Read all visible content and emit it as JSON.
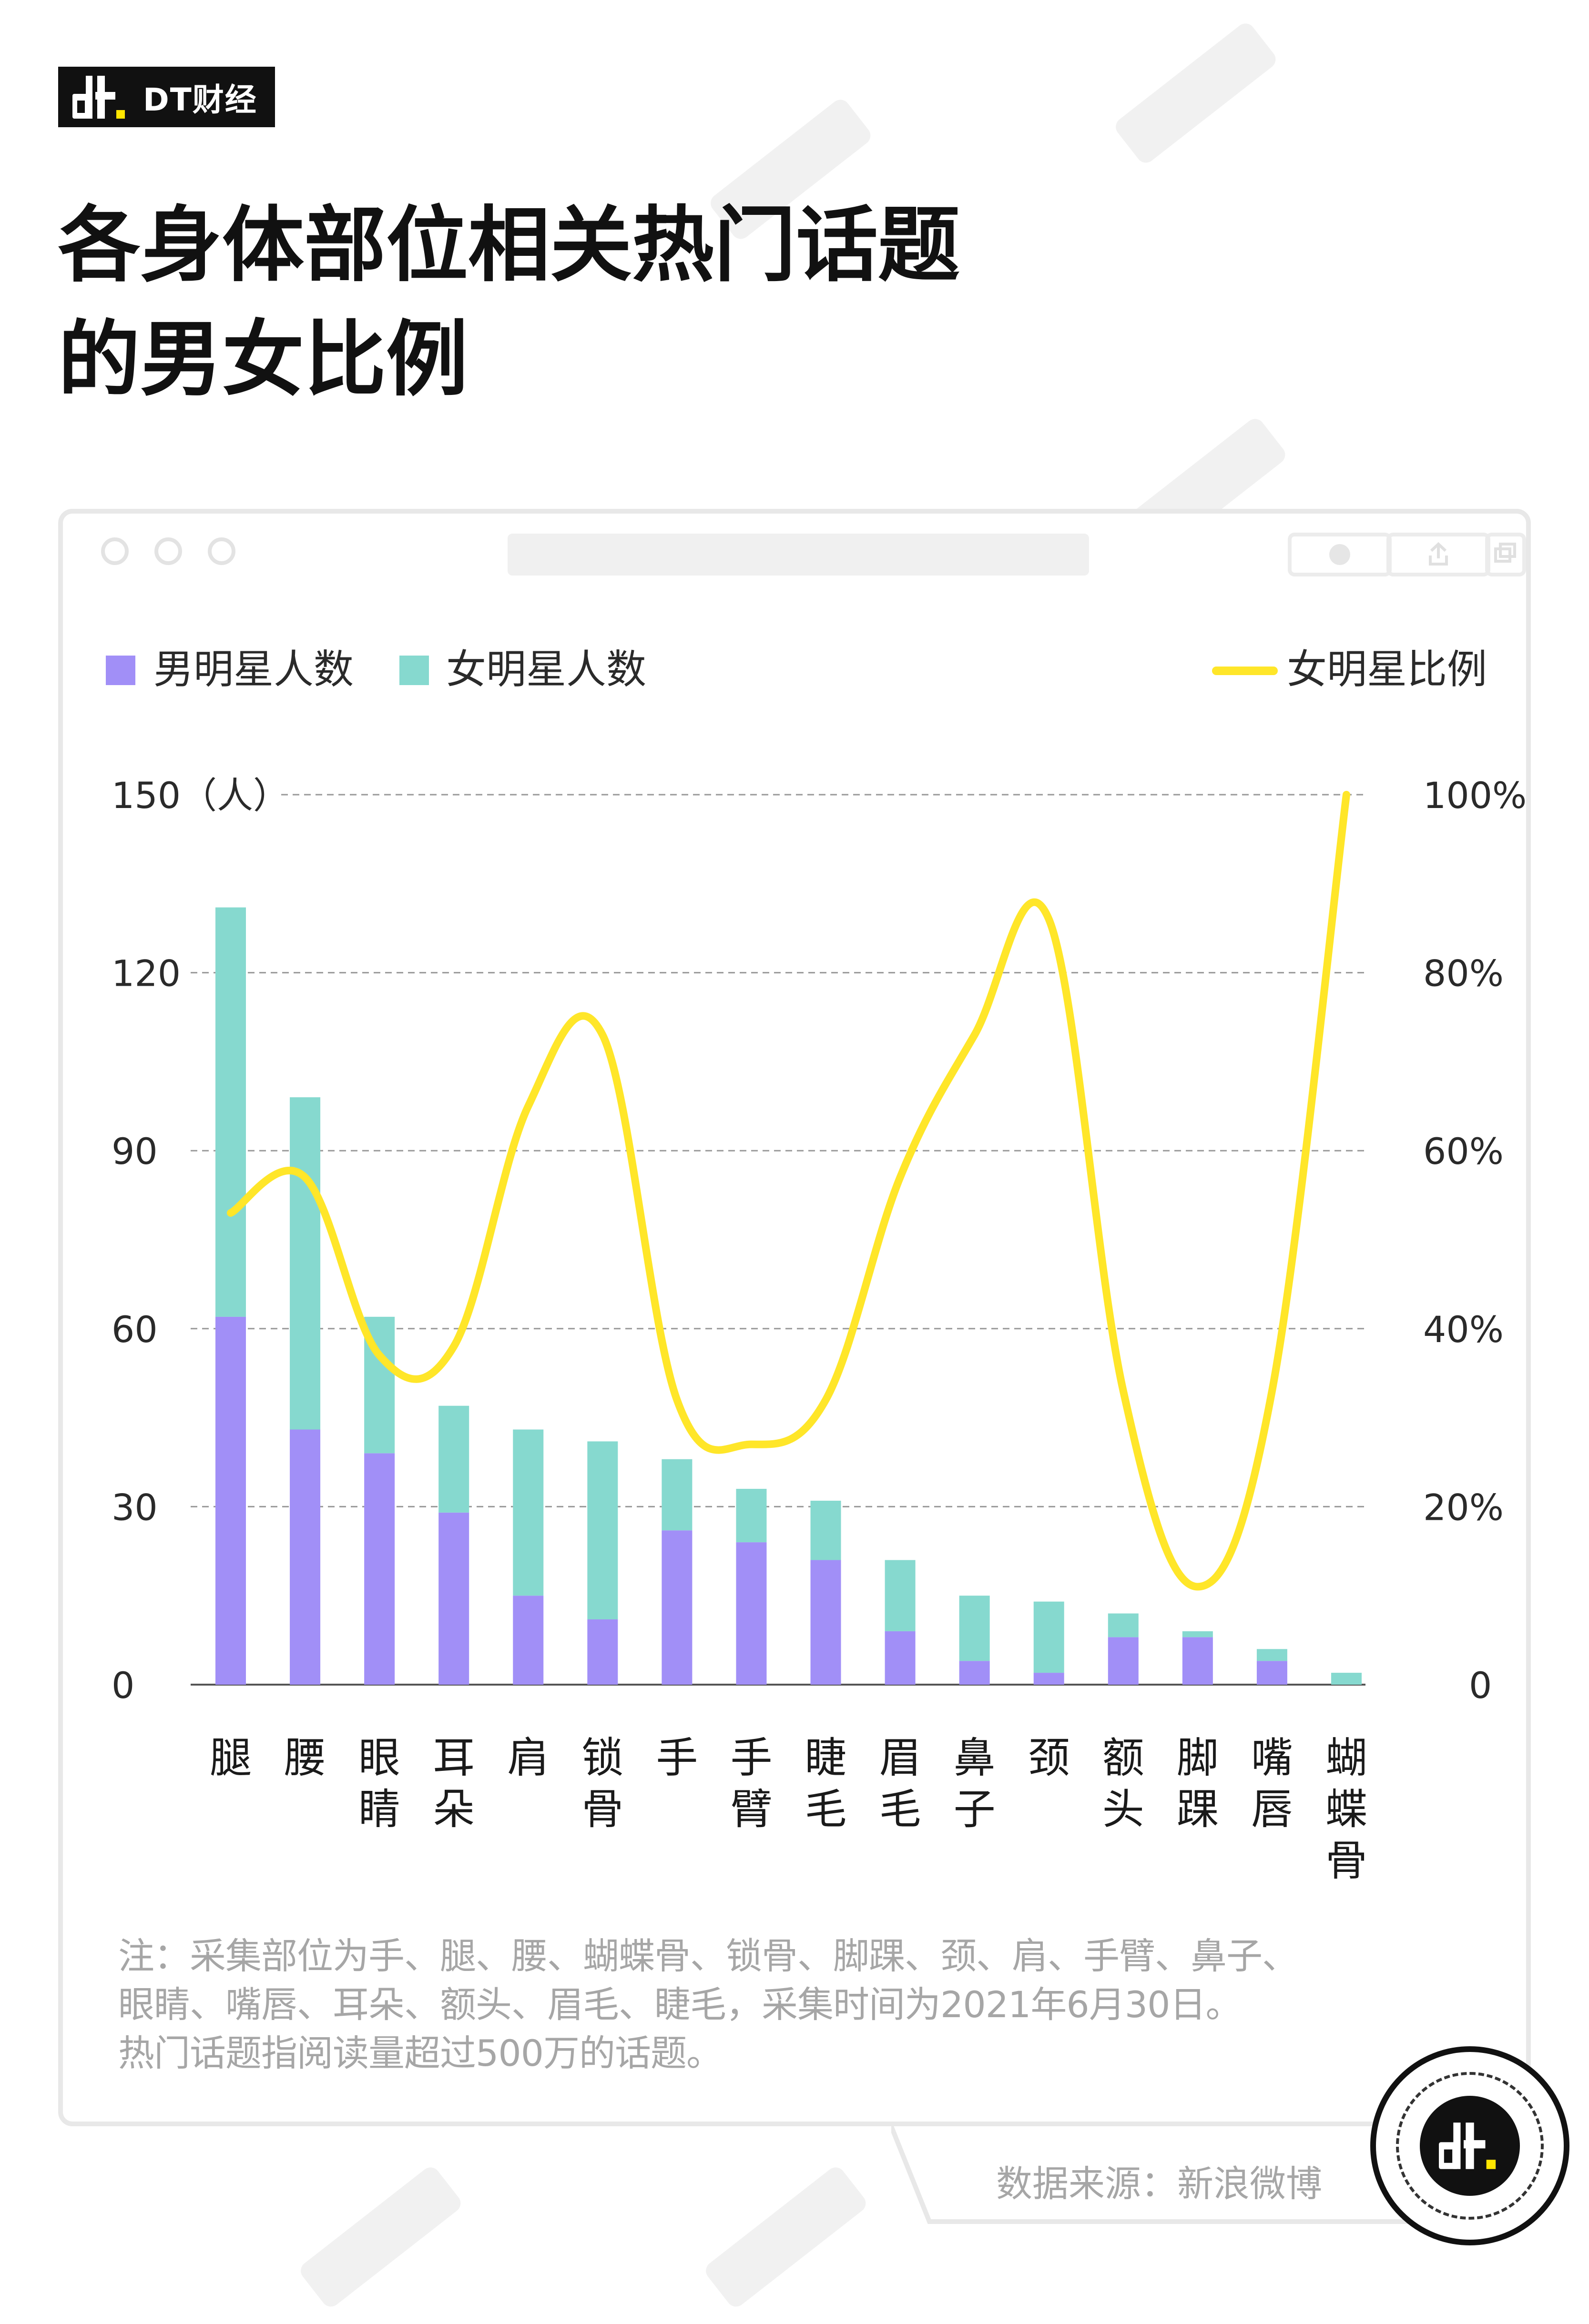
{
  "brand": {
    "name": "DT财经",
    "mark_color": "#FFE600"
  },
  "title": {
    "line1": "各身体部位相关热门话题",
    "line2": "的男女比例"
  },
  "legend": {
    "male": "男明星人数",
    "female": "女明星人数",
    "ratio": "女明星比例",
    "male_color": "#A18FF7",
    "female_color": "#86D9CF",
    "ratio_color": "#FFE629"
  },
  "note": {
    "line1": "注：采集部位为手、腿、腰、蝴蝶骨、锁骨、脚踝、颈、肩、手臂、鼻子、",
    "line2": "眼睛、嘴唇、耳朵、额头、眉毛、睫毛，采集时间为2021年6月30日。",
    "line3": "热门话题指阅读量超过500万的话题。"
  },
  "source": "数据来源：新浪微博",
  "chart_data": {
    "type": "bar",
    "stacked": true,
    "categories": [
      "腿",
      "腰",
      "眼睛",
      "耳朵",
      "肩",
      "锁骨",
      "手",
      "手臂",
      "睫毛",
      "眉毛",
      "鼻子",
      "颈",
      "额头",
      "脚踝",
      "嘴唇",
      "蝴蝶骨"
    ],
    "series": [
      {
        "name": "男明星人数",
        "type": "bar",
        "values": [
          62,
          43,
          39,
          29,
          15,
          11,
          26,
          24,
          21,
          9,
          4,
          2,
          8,
          8,
          4,
          0
        ]
      },
      {
        "name": "女明星人数",
        "type": "bar",
        "values": [
          69,
          56,
          23,
          18,
          28,
          30,
          12,
          9,
          10,
          12,
          11,
          12,
          4,
          1,
          2,
          2
        ]
      },
      {
        "name": "女明星比例",
        "type": "line",
        "axis": "right",
        "values": [
          53,
          57,
          37,
          38,
          65,
          73,
          32,
          27,
          32,
          57,
          73,
          86,
          33,
          11,
          33,
          100
        ]
      }
    ],
    "y_left": {
      "ticks": [
        "0",
        "30",
        "60",
        "90",
        "120",
        "150（人）"
      ],
      "max": 150
    },
    "y_right": {
      "ticks": [
        "0",
        "20%",
        "40%",
        "60%",
        "80%",
        "100%"
      ],
      "max": 100
    },
    "grid": "dashed",
    "legend_position": "top"
  }
}
